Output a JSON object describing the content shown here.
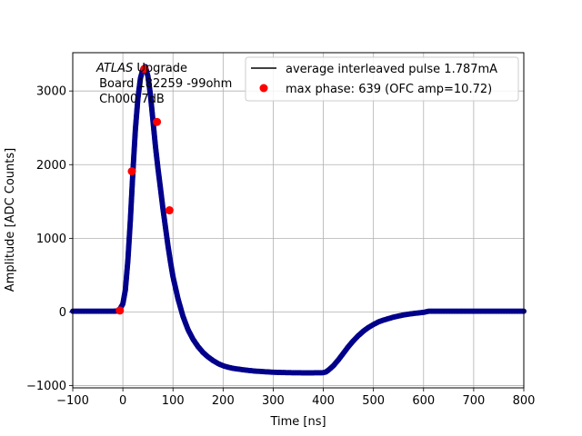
{
  "chart_data": {
    "type": "line",
    "title": "",
    "xlabel": "Time [ns]",
    "ylabel": "Amplitude [ADC Counts]",
    "xlim": [
      -100,
      800
    ],
    "ylim": [
      -1030,
      3520
    ],
    "xticks": [
      -100,
      0,
      100,
      200,
      300,
      400,
      500,
      600,
      700,
      800
    ],
    "yticks": [
      -1000,
      0,
      1000,
      2000,
      3000
    ],
    "xtick_labels": [
      "−100",
      "0",
      "100",
      "200",
      "300",
      "400",
      "500",
      "600",
      "700",
      "800"
    ],
    "ytick_labels": [
      "−1000",
      "0",
      "1000",
      "2000",
      "3000"
    ],
    "grid": true,
    "legend_position": "upper-right",
    "annotation": {
      "line1_italic": "ATLAS",
      "line1_rest": " Upgrade",
      "line2": " Board 182259 -99ohm",
      "line3": " Ch000 7dB"
    },
    "series": [
      {
        "name": "average interleaved pulse 1.787mA",
        "style": "line-with-dense-markers",
        "line_color": "#000000",
        "marker_color": "#00008b",
        "x": [
          -100,
          -60,
          -20,
          -8,
          0,
          5,
          10,
          15,
          20,
          25,
          30,
          35,
          40,
          45,
          50,
          55,
          60,
          65,
          70,
          75,
          80,
          85,
          90,
          95,
          100,
          110,
          120,
          130,
          140,
          150,
          160,
          170,
          180,
          190,
          200,
          210,
          220,
          240,
          260,
          280,
          300,
          320,
          340,
          360,
          380,
          400,
          405,
          410,
          420,
          430,
          440,
          450,
          460,
          470,
          480,
          490,
          500,
          510,
          520,
          540,
          560,
          580,
          600,
          610,
          650,
          700,
          750,
          800
        ],
        "y": [
          10,
          10,
          10,
          15,
          110,
          300,
          700,
          1250,
          1900,
          2480,
          2900,
          3170,
          3300,
          3330,
          3200,
          2950,
          2600,
          2250,
          1950,
          1680,
          1400,
          1150,
          900,
          680,
          480,
          180,
          -60,
          -240,
          -370,
          -470,
          -550,
          -610,
          -660,
          -700,
          -730,
          -750,
          -765,
          -785,
          -800,
          -810,
          -818,
          -822,
          -825,
          -826,
          -826,
          -824,
          -815,
          -790,
          -730,
          -650,
          -560,
          -470,
          -390,
          -320,
          -260,
          -210,
          -170,
          -135,
          -110,
          -70,
          -40,
          -20,
          -5,
          10,
          10,
          10,
          10,
          10
        ]
      },
      {
        "name": "max phase: 639 (OFC amp=10.72)",
        "style": "markers",
        "marker_color": "#ff0000",
        "x": [
          -6,
          18,
          43,
          68,
          93
        ],
        "y": [
          20,
          1910,
          3300,
          2580,
          1380
        ]
      }
    ]
  }
}
